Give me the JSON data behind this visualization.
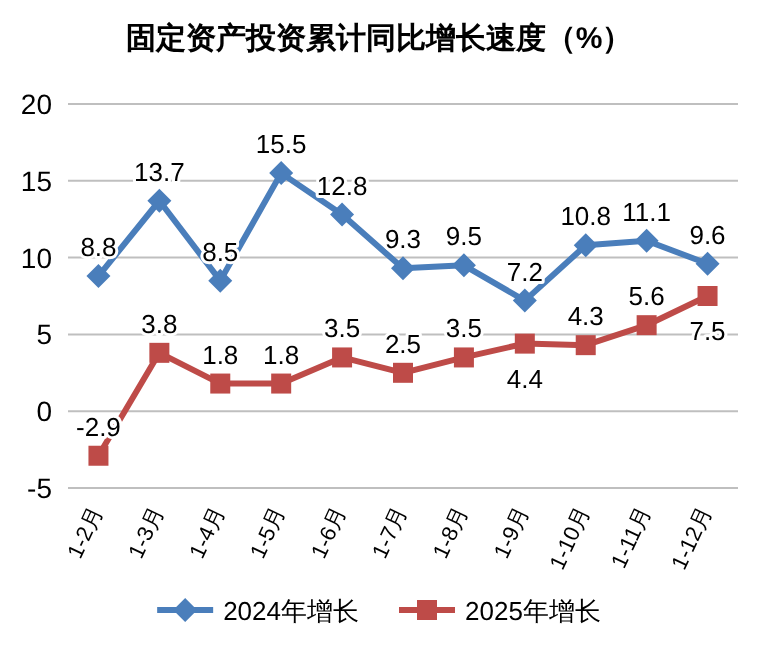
{
  "chart_data": {
    "type": "line",
    "title": "固定资产投资累计同比增长速度（%）",
    "categories": [
      "1-2月",
      "1-3月",
      "1-4月",
      "1-5月",
      "1-6月",
      "1-7月",
      "1-8月",
      "1-9月",
      "1-10月",
      "1-11月",
      "1-12月"
    ],
    "series": [
      {
        "name": "2024年增长",
        "color": "#4a7ebb",
        "marker": "diamond",
        "values": [
          8.8,
          13.7,
          8.5,
          15.5,
          12.8,
          9.3,
          9.5,
          7.2,
          10.8,
          11.1,
          9.6
        ]
      },
      {
        "name": "2025年增长",
        "color": "#be4b48",
        "marker": "square",
        "values": [
          -2.9,
          3.8,
          1.8,
          1.8,
          3.5,
          2.5,
          3.5,
          4.4,
          4.3,
          5.6,
          7.5
        ]
      }
    ],
    "ylim": [
      -5,
      20
    ],
    "yticks": [
      -5,
      0,
      5,
      10,
      15,
      20
    ],
    "grid": "y",
    "legend": "bottom",
    "data_labels": true,
    "line_style": "solid"
  }
}
